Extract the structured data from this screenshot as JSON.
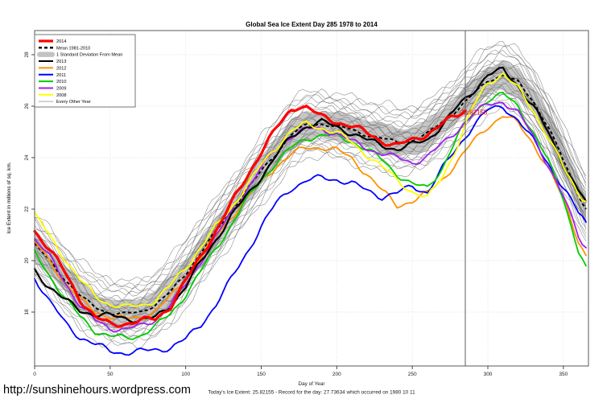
{
  "page": {
    "url_text": "http://sunshinehours.wordpress.com",
    "caption": "Today's Ice Extent: 25.82155  - Record for the day: 27.73634 which occurred on 1980 10 11"
  },
  "chart_data": {
    "type": "line",
    "title": "Global Sea Ice Extent Day 285 1978 to 2014",
    "xlabel": "Day of Year",
    "ylabel": "Ice Extent in millions of sq. km.",
    "xlim": [
      0,
      365
    ],
    "ylim": [
      15.9,
      28.95
    ],
    "xticks": [
      0,
      50,
      100,
      150,
      200,
      250,
      300,
      350
    ],
    "yticks": [
      18,
      20,
      22,
      24,
      26,
      28
    ],
    "grid": "dotted",
    "marker": {
      "day": 285,
      "label": "25.82155",
      "value": 25.82155,
      "color": "#ff0000"
    },
    "legend": {
      "position": "top-left",
      "items": [
        {
          "label": "2014",
          "color": "#ff0000",
          "swatch": "line-thick"
        },
        {
          "label": "Mean 1981-2010",
          "color": "#000000",
          "swatch": "line-dashed"
        },
        {
          "label": "1 Standard Deviation From Mean",
          "color": "#c3c3c3",
          "swatch": "band"
        },
        {
          "label": "2013",
          "color": "#000000",
          "swatch": "line"
        },
        {
          "label": "2012",
          "color": "#ff9100",
          "swatch": "line"
        },
        {
          "label": "2011",
          "color": "#0000ff",
          "swatch": "line"
        },
        {
          "label": "2010",
          "color": "#00cd00",
          "swatch": "line"
        },
        {
          "label": "2009",
          "color": "#a020f0",
          "swatch": "line"
        },
        {
          "label": "2008",
          "color": "#ffff00",
          "swatch": "line"
        },
        {
          "label": "Every Other Year",
          "color": "#8c8c8c",
          "swatch": "line-thin"
        }
      ]
    },
    "days": [
      0,
      10,
      20,
      30,
      40,
      50,
      60,
      70,
      80,
      90,
      100,
      110,
      120,
      130,
      140,
      150,
      160,
      170,
      180,
      190,
      200,
      210,
      220,
      230,
      240,
      250,
      260,
      270,
      280,
      290,
      300,
      310,
      320,
      330,
      340,
      350,
      360,
      365
    ],
    "mean_series": {
      "name": "Mean 1981-2010",
      "color": "#000000",
      "values": [
        20.6,
        20.0,
        19.3,
        18.65,
        18.2,
        17.95,
        17.9,
        18.0,
        18.3,
        18.8,
        19.5,
        20.3,
        21.1,
        21.9,
        22.7,
        23.5,
        24.2,
        24.9,
        25.25,
        25.3,
        25.2,
        25.1,
        24.9,
        24.75,
        24.6,
        24.65,
        24.9,
        25.4,
        25.9,
        26.45,
        27.0,
        27.2,
        26.9,
        26.2,
        25.2,
        23.9,
        22.6,
        22.0
      ]
    },
    "std_band": {
      "name": "1 Standard Deviation From Mean",
      "half_width": 0.55,
      "color": "#c3c3c3"
    },
    "series": [
      {
        "name": "2012",
        "color": "#ff9100",
        "width": 1.8,
        "values": [
          20.7,
          20.0,
          19.2,
          18.5,
          18.0,
          17.8,
          17.7,
          17.8,
          18.1,
          18.6,
          19.3,
          20.1,
          20.9,
          21.7,
          22.4,
          23.1,
          23.7,
          24.1,
          24.35,
          24.4,
          24.3,
          24.0,
          23.4,
          22.7,
          22.1,
          22.3,
          22.6,
          23.2,
          23.9,
          24.6,
          25.2,
          25.6,
          25.3,
          24.6,
          23.6,
          22.4,
          20.8,
          20.2
        ]
      },
      {
        "name": "2011",
        "color": "#0000ff",
        "width": 1.8,
        "values": [
          19.4,
          18.4,
          17.6,
          17.0,
          16.7,
          16.5,
          16.45,
          16.5,
          16.55,
          16.6,
          16.9,
          17.5,
          18.3,
          19.3,
          20.3,
          21.3,
          22.2,
          22.8,
          23.1,
          23.25,
          23.2,
          23.0,
          22.7,
          22.45,
          22.6,
          22.9,
          22.7,
          23.6,
          24.4,
          25.2,
          25.8,
          26.0,
          25.5,
          24.7,
          23.8,
          22.8,
          21.8,
          21.5
        ]
      },
      {
        "name": "2010",
        "color": "#00cd00",
        "width": 1.8,
        "values": [
          20.3,
          19.4,
          18.5,
          17.8,
          17.3,
          17.1,
          17.0,
          17.1,
          17.4,
          17.9,
          18.7,
          19.6,
          20.5,
          21.4,
          22.3,
          23.1,
          23.8,
          24.4,
          24.8,
          24.9,
          24.8,
          24.6,
          24.3,
          23.9,
          23.4,
          23.0,
          22.8,
          23.6,
          24.8,
          25.7,
          26.3,
          26.5,
          26.0,
          25.0,
          23.8,
          22.4,
          20.4,
          19.8
        ]
      },
      {
        "name": "2009",
        "color": "#a020f0",
        "width": 1.8,
        "values": [
          20.8,
          20.1,
          19.2,
          18.3,
          17.7,
          17.4,
          17.3,
          17.4,
          17.7,
          18.3,
          19.1,
          20.0,
          20.9,
          21.8,
          22.7,
          23.6,
          24.4,
          24.9,
          25.1,
          25.1,
          24.9,
          24.6,
          24.4,
          24.2,
          24.0,
          23.8,
          24.0,
          24.5,
          25.1,
          25.7,
          26.1,
          26.2,
          25.7,
          24.8,
          23.7,
          22.5,
          21.0,
          20.5
        ]
      },
      {
        "name": "2013",
        "color": "#000000",
        "width": 2.2,
        "values": [
          19.6,
          19.0,
          18.5,
          18.1,
          17.9,
          17.8,
          17.75,
          17.7,
          17.8,
          18.3,
          19.0,
          19.9,
          20.8,
          21.7,
          22.5,
          23.3,
          24.1,
          24.8,
          25.2,
          25.35,
          25.2,
          25.0,
          24.7,
          24.5,
          24.3,
          24.45,
          24.7,
          25.3,
          26.0,
          26.6,
          27.2,
          27.35,
          26.8,
          26.0,
          25.0,
          23.8,
          22.7,
          22.3
        ]
      },
      {
        "name": "2008",
        "color": "#ffff00",
        "width": 1.8,
        "values": [
          21.8,
          21.0,
          20.1,
          19.2,
          18.6,
          18.3,
          18.2,
          18.3,
          18.5,
          19.0,
          19.7,
          20.5,
          21.3,
          22.1,
          22.9,
          23.7,
          24.4,
          25.0,
          25.3,
          25.2,
          25.0,
          24.6,
          24.1,
          23.6,
          23.1,
          22.7,
          22.45,
          23.3,
          24.5,
          25.9,
          26.9,
          27.25,
          26.7,
          25.9,
          24.8,
          23.6,
          22.6,
          22.3
        ]
      },
      {
        "name": "2014",
        "color": "#ff0000",
        "width": 3.2,
        "days": [
          0,
          10,
          20,
          30,
          40,
          50,
          60,
          70,
          80,
          90,
          100,
          110,
          120,
          130,
          140,
          150,
          160,
          170,
          175,
          180,
          190,
          200,
          210,
          220,
          230,
          240,
          250,
          260,
          270,
          280,
          285
        ],
        "values": [
          21.2,
          20.4,
          19.5,
          18.5,
          17.8,
          17.55,
          17.6,
          17.65,
          17.7,
          18.2,
          19.2,
          20.2,
          21.2,
          22.2,
          23.2,
          24.2,
          25.1,
          25.9,
          26.05,
          26.0,
          25.6,
          25.4,
          25.2,
          24.9,
          24.65,
          24.5,
          24.7,
          24.95,
          25.3,
          25.6,
          25.82
        ]
      }
    ],
    "other_years": {
      "name": "Every Other Year",
      "color": "#808080",
      "offsets": [
        -1.25,
        -1.1,
        -0.95,
        -0.82,
        -0.7,
        -0.6,
        -0.5,
        -0.42,
        -0.34,
        -0.26,
        -0.18,
        -0.1,
        -0.03,
        0.05,
        0.12,
        0.2,
        0.28,
        0.36,
        0.45,
        0.55,
        0.65,
        0.78,
        0.9,
        1.02,
        1.15,
        1.28
      ]
    }
  }
}
